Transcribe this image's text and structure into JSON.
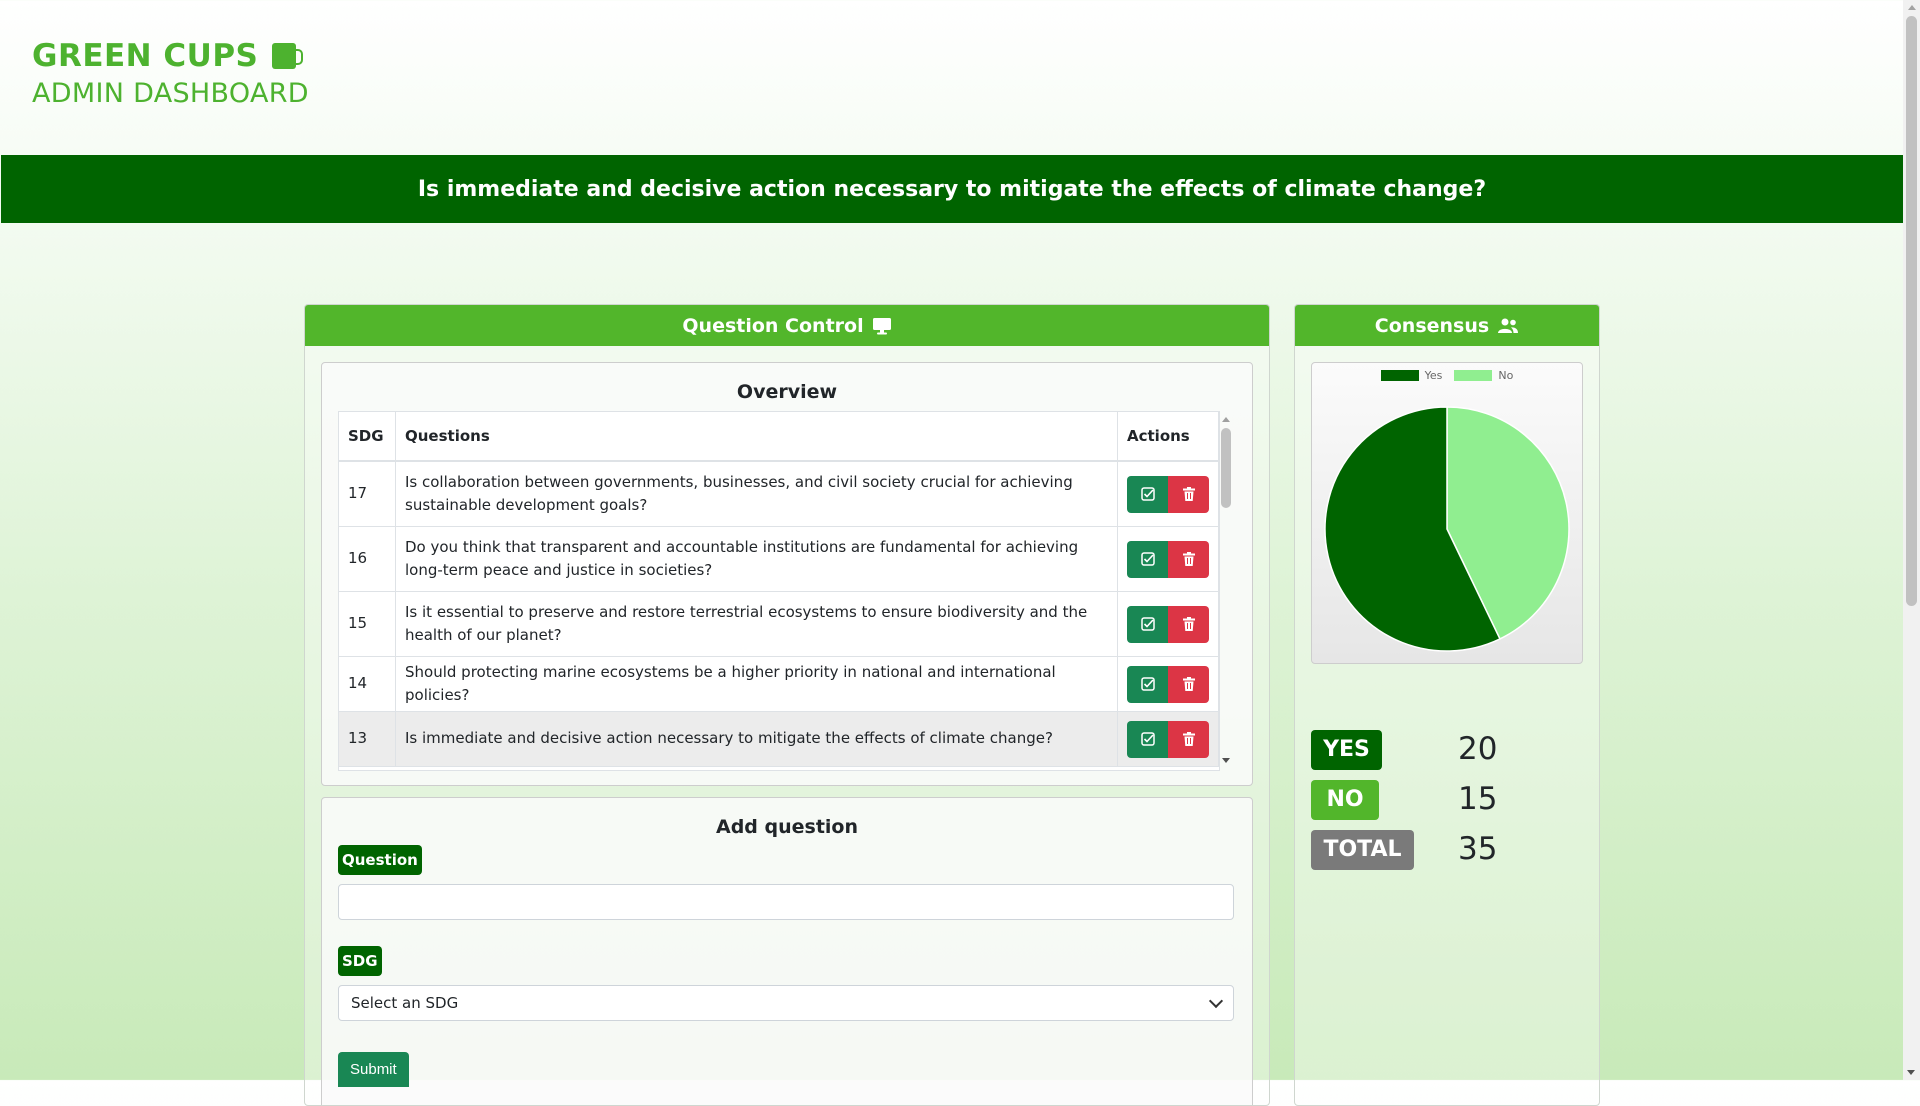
{
  "brand": {
    "title": "GREEN CUPS",
    "subtitle": "ADMIN DASHBOARD",
    "icon": "mug-icon"
  },
  "banner": {
    "current_question": "Is immediate and decisive action necessary to mitigate the effects of climate change?"
  },
  "question_control": {
    "header": "Question Control",
    "header_icon": "monitor-icon",
    "overview": {
      "title": "Overview",
      "columns": [
        "SDG",
        "Questions",
        "Actions"
      ],
      "rows": [
        {
          "sdg": "17",
          "question": "Is collaboration between governments, businesses, and civil society crucial for achieving sustainable development goals?"
        },
        {
          "sdg": "16",
          "question": "Do you think that transparent and accountable institutions are fundamental for achieving long-term peace and justice in societies?"
        },
        {
          "sdg": "15",
          "question": "Is it essential to preserve and restore terrestrial ecosystems to ensure biodiversity and the health of our planet?"
        },
        {
          "sdg": "14",
          "question": "Should protecting marine ecosystems be a higher priority in national and international policies?"
        },
        {
          "sdg": "13",
          "question": "Is immediate and decisive action necessary to mitigate the effects of climate change?"
        }
      ],
      "action_icons": [
        "check-square-icon",
        "trash-icon"
      ]
    },
    "add_question": {
      "title": "Add question",
      "question_label": "Question",
      "question_value": "",
      "sdg_label": "SDG",
      "sdg_selected": "Select an SDG",
      "submit_label": "Submit"
    }
  },
  "consensus": {
    "header": "Consensus",
    "header_icon": "users-icon",
    "legend": [
      "Yes",
      "No"
    ],
    "colors": {
      "yes": "#006400",
      "no": "#90ee90",
      "no_badge": "#52b62b",
      "total_badge": "#7a7a7a"
    },
    "stats": [
      {
        "label": "YES",
        "value": "20"
      },
      {
        "label": "NO",
        "value": "15"
      },
      {
        "label": "TOTAL",
        "value": "35"
      }
    ]
  },
  "chart_data": {
    "type": "pie",
    "categories": [
      "Yes",
      "No"
    ],
    "values": [
      20,
      15
    ],
    "legend_position": "top"
  }
}
